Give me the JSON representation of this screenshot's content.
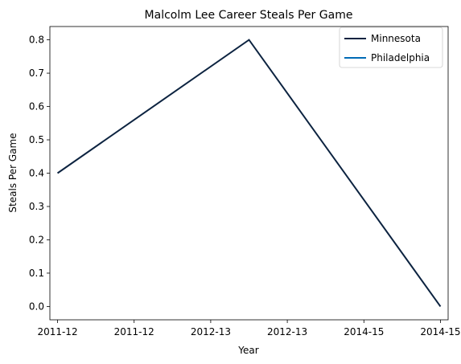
{
  "chart_data": {
    "type": "line",
    "title": "Malcolm Lee  Career Steals Per Game",
    "xlabel": "Year",
    "ylabel": "Steals Per Game",
    "x_tick_labels": [
      "2011-12",
      "2011-12",
      "2012-13",
      "2012-13",
      "2014-15",
      "2014-15"
    ],
    "x_range": [
      -0.1,
      5.1
    ],
    "ylim": [
      -0.04,
      0.84
    ],
    "y_ticks": [
      0.0,
      0.1,
      0.2,
      0.3,
      0.4,
      0.5,
      0.6,
      0.7,
      0.8
    ],
    "grid": false,
    "legend_position": "top-right",
    "series": [
      {
        "name": "Minnesota",
        "color": "#0c2340",
        "x": [
          0,
          2.5,
          5
        ],
        "y": [
          0.4,
          0.8,
          0.0
        ]
      },
      {
        "name": "Philadelphia",
        "color": "#006bb6",
        "x": [],
        "y": []
      }
    ]
  }
}
